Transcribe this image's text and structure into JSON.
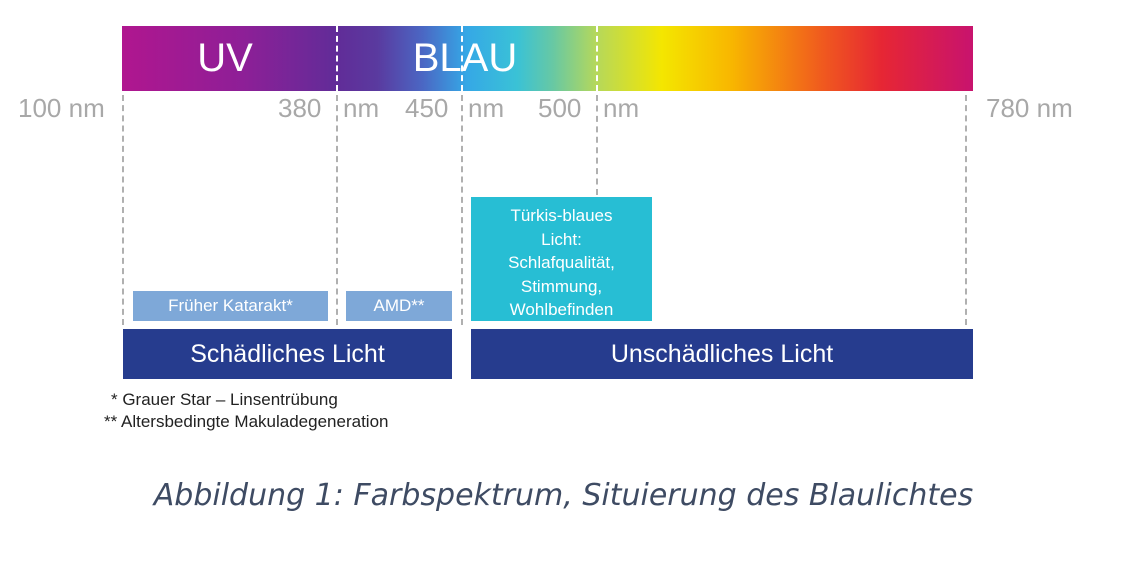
{
  "spectrum": {
    "bands": {
      "uv": "UV",
      "blau": "BLAU"
    },
    "wavelengths": {
      "w100": "100 nm",
      "w380_num": "380",
      "w380_unit": "nm",
      "w450_num": "450",
      "w450_unit": "nm",
      "w500_num": "500",
      "w500_unit": "nm",
      "w780": "780 nm"
    }
  },
  "effects": {
    "frueher_katarakt": "Früher Katarakt*",
    "amd": "AMD**",
    "tuerkis_lines": [
      "Türkis-blaues",
      "Licht:",
      "Schlafqualität,",
      "Stimmung,",
      "Wohlbefinden"
    ]
  },
  "categories": {
    "schaedlich": "Schädliches Licht",
    "unschaedlich": "Unschädliches Licht"
  },
  "footnotes": {
    "star": "* Grauer Star – Linsentrübung",
    "double_star": "** Altersbedingte Makuladegeneration"
  },
  "caption": "Abbildung 1: Farbspektrum, Situierung des Blaulichtes",
  "colors": {
    "category_dark_blue": "#263c8e",
    "effect_light_blue": "#7ea8d8",
    "tuerkis": "#27bed4",
    "caption_text": "#3e4b63"
  }
}
